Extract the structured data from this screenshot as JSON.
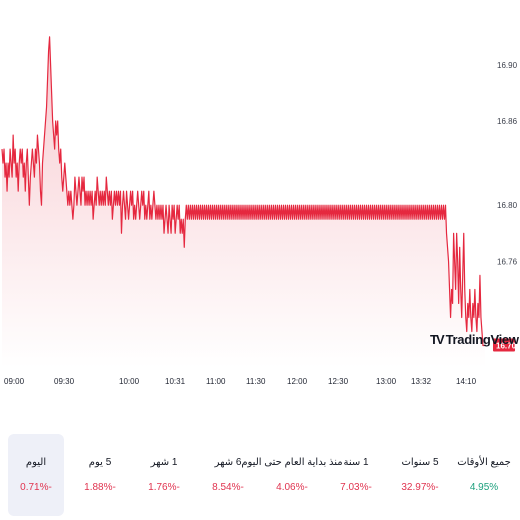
{
  "chart_data": {
    "type": "area",
    "y_ticks": [
      16.76,
      16.8,
      16.86,
      16.9
    ],
    "y_tick_labels": [
      "16.76",
      "16.80",
      "16.86",
      "16.90"
    ],
    "x_tick_labels": [
      "09:00",
      "09:30",
      "10:00",
      "10:31",
      "11:00",
      "11:30",
      "12:00",
      "12:30",
      "13:00",
      "13:32",
      "14:10"
    ],
    "last_price": "16.70",
    "series": [
      {
        "values": [
          16.84,
          16.83,
          16.84,
          16.82,
          16.83,
          16.81,
          16.83,
          16.82,
          16.84,
          16.83,
          16.82,
          16.85,
          16.83,
          16.84,
          16.82,
          16.83,
          16.81,
          16.83,
          16.84,
          16.83,
          16.84,
          16.82,
          16.83,
          16.81,
          16.83,
          16.84,
          16.82,
          16.8,
          16.82,
          16.83,
          16.84,
          16.83,
          16.82,
          16.84,
          16.83,
          16.85,
          16.84,
          16.83,
          16.81,
          16.8,
          16.83,
          16.84,
          16.85,
          16.86,
          16.87,
          16.89,
          16.91,
          16.92,
          16.9,
          16.88,
          16.86,
          16.85,
          16.84,
          16.86,
          16.85,
          16.86,
          16.84,
          16.83,
          16.84,
          16.82,
          16.81,
          16.82,
          16.83,
          16.82,
          16.81,
          16.8,
          16.81,
          16.8,
          16.81,
          16.8,
          16.79,
          16.8,
          16.82,
          16.81,
          16.8,
          16.81,
          16.82,
          16.81,
          16.8,
          16.82,
          16.81,
          16.82,
          16.8,
          16.81,
          16.8,
          16.81,
          16.8,
          16.81,
          16.8,
          16.81,
          16.79,
          16.8,
          16.81,
          16.8,
          16.82,
          16.81,
          16.8,
          16.81,
          16.8,
          16.81,
          16.8,
          16.81,
          16.8,
          16.82,
          16.81,
          16.8,
          16.81,
          16.8,
          16.81,
          16.79,
          16.8,
          16.81,
          16.8,
          16.81,
          16.8,
          16.81,
          16.8,
          16.81,
          16.78,
          16.8,
          16.81,
          16.8,
          16.79,
          16.81,
          16.8,
          16.79,
          16.8,
          16.81,
          16.8,
          16.81,
          16.79,
          16.8,
          16.79,
          16.8,
          16.81,
          16.8,
          16.79,
          16.8,
          16.81,
          16.8,
          16.81,
          16.79,
          16.8,
          16.79,
          16.8,
          16.81,
          16.79,
          16.8,
          16.79,
          16.8,
          16.81,
          16.8,
          16.79,
          16.8,
          16.79,
          16.8,
          16.79,
          16.8,
          16.79,
          16.8,
          16.78,
          16.79,
          16.8,
          16.79,
          16.78,
          16.8,
          16.79,
          16.78,
          16.8,
          16.79,
          16.8,
          16.78,
          16.79,
          16.8,
          16.79,
          16.8,
          16.78,
          16.79,
          16.78,
          16.79,
          16.77,
          16.79,
          16.8,
          16.79,
          16.8,
          16.79,
          16.8,
          16.79,
          16.8,
          16.79,
          16.8,
          16.79,
          16.8,
          16.79,
          16.8,
          16.79,
          16.8,
          16.79,
          16.8,
          16.79,
          16.8,
          16.79,
          16.8,
          16.79,
          16.8,
          16.79,
          16.8,
          16.79,
          16.8,
          16.79,
          16.8,
          16.79,
          16.8,
          16.79,
          16.8,
          16.79,
          16.8,
          16.79,
          16.8,
          16.79,
          16.8,
          16.79,
          16.8,
          16.79,
          16.8,
          16.79,
          16.8,
          16.79,
          16.8,
          16.79,
          16.8,
          16.79,
          16.8,
          16.79,
          16.8,
          16.79,
          16.8,
          16.79,
          16.8,
          16.79,
          16.8,
          16.79,
          16.8,
          16.79,
          16.8,
          16.79,
          16.8,
          16.79,
          16.8,
          16.79,
          16.8,
          16.79,
          16.8,
          16.79,
          16.8,
          16.79,
          16.8,
          16.79,
          16.8,
          16.79,
          16.8,
          16.79,
          16.8,
          16.79,
          16.8,
          16.79,
          16.8,
          16.79,
          16.8,
          16.79,
          16.8,
          16.79,
          16.8,
          16.79,
          16.8,
          16.79,
          16.8,
          16.79,
          16.8,
          16.79,
          16.8,
          16.79,
          16.8,
          16.79,
          16.8,
          16.79,
          16.8,
          16.79,
          16.8,
          16.79,
          16.8,
          16.79,
          16.8,
          16.79,
          16.8,
          16.79,
          16.8,
          16.79,
          16.8,
          16.79,
          16.8,
          16.79,
          16.8,
          16.79,
          16.8,
          16.79,
          16.8,
          16.79,
          16.8,
          16.79,
          16.8,
          16.79,
          16.8,
          16.79,
          16.8,
          16.79,
          16.8,
          16.79,
          16.8,
          16.79,
          16.8,
          16.79,
          16.8,
          16.79,
          16.8,
          16.79,
          16.8,
          16.79,
          16.8,
          16.79,
          16.8,
          16.79,
          16.8,
          16.79,
          16.8,
          16.79,
          16.8,
          16.79,
          16.8,
          16.79,
          16.8,
          16.79,
          16.8,
          16.79,
          16.8,
          16.79,
          16.8,
          16.79,
          16.8,
          16.79,
          16.8,
          16.79,
          16.8,
          16.79,
          16.8,
          16.79,
          16.8,
          16.79,
          16.8,
          16.79,
          16.8,
          16.79,
          16.8,
          16.79,
          16.8,
          16.79,
          16.8,
          16.79,
          16.8,
          16.79,
          16.8,
          16.79,
          16.8,
          16.79,
          16.8,
          16.79,
          16.8,
          16.79,
          16.8,
          16.79,
          16.8,
          16.79,
          16.8,
          16.79,
          16.8,
          16.79,
          16.8,
          16.79,
          16.8,
          16.79,
          16.8,
          16.79,
          16.8,
          16.79,
          16.8,
          16.79,
          16.8,
          16.79,
          16.8,
          16.79,
          16.8,
          16.79,
          16.8,
          16.79,
          16.8,
          16.79,
          16.8,
          16.79,
          16.8,
          16.79,
          16.8,
          16.79,
          16.8,
          16.79,
          16.8,
          16.79,
          16.8,
          16.79,
          16.8,
          16.79,
          16.8,
          16.79,
          16.8,
          16.79,
          16.8,
          16.79,
          16.8,
          16.79,
          16.8,
          16.79,
          16.8,
          16.79,
          16.8,
          16.79,
          16.8,
          16.79,
          16.8,
          16.79,
          16.8,
          16.78,
          16.77,
          16.76,
          16.74,
          16.72,
          16.74,
          16.73,
          16.78,
          16.76,
          16.74,
          16.78,
          16.76,
          16.73,
          16.77,
          16.74,
          16.72,
          16.75,
          16.78,
          16.74,
          16.72,
          16.71,
          16.73,
          16.72,
          16.74,
          16.72,
          16.71,
          16.73,
          16.72,
          16.74,
          16.72,
          16.71,
          16.73,
          16.72,
          16.75,
          16.72,
          16.71,
          16.7,
          16.7,
          16.7
        ]
      }
    ],
    "ylim": [
      16.684,
      16.932
    ],
    "colors": {
      "line": "#e5283f",
      "fill_top": "#f7c6cc",
      "fill_bottom": "#ffffff",
      "price_tag": "#e5283f"
    },
    "grid": false
  },
  "logo": {
    "text": "TradingView",
    "mark": "TV"
  },
  "periods": [
    {
      "label": "اليوم",
      "value": "0.71%-",
      "sign": "neg",
      "active": true
    },
    {
      "label": "5 يوم",
      "value": "1.88%-",
      "sign": "neg",
      "active": false
    },
    {
      "label": "1 شهر",
      "value": "1.76%-",
      "sign": "neg",
      "active": false
    },
    {
      "label": "6 شهر",
      "value": "8.54%-",
      "sign": "neg",
      "active": false
    },
    {
      "label": "منذ بداية العام حتى اليوم",
      "value": "4.06%-",
      "sign": "neg",
      "active": false
    },
    {
      "label": "1 سنة",
      "value": "7.03%-",
      "sign": "neg",
      "active": false
    },
    {
      "label": "5 سنوات",
      "value": "32.97%-",
      "sign": "neg",
      "active": false
    },
    {
      "label": "جميع الأوقات",
      "value": "4.95%",
      "sign": "pos",
      "active": false
    }
  ]
}
